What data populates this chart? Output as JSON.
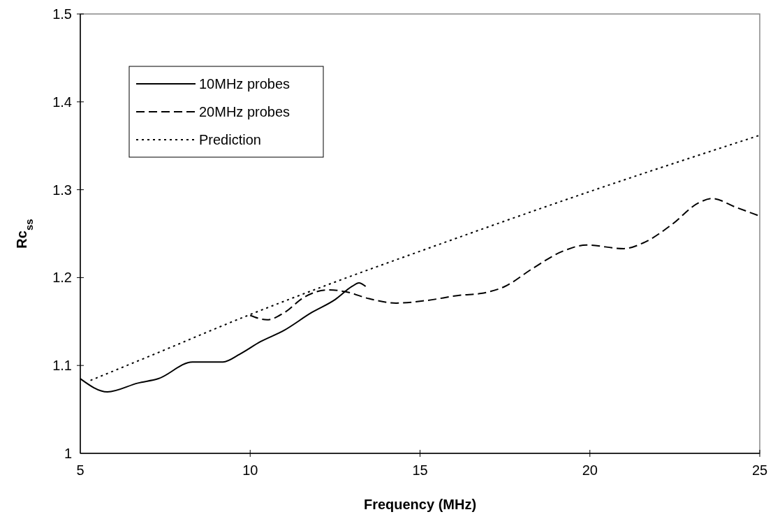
{
  "chart_data": {
    "type": "line",
    "xlabel": "Frequency (MHz)",
    "ylabel": "Rc$_{ss}$",
    "xlim": [
      5,
      25
    ],
    "ylim": [
      1,
      1.5
    ],
    "xticks": [
      5,
      10,
      15,
      20,
      25
    ],
    "yticks": [
      1,
      1.1,
      1.2,
      1.3,
      1.4,
      1.5
    ],
    "grid": false,
    "legend": "top left",
    "marker": "none",
    "series": [
      {
        "name": "10MHz probes",
        "color": "#000000",
        "line_style": "solid",
        "x": [
          5,
          5.8,
          6.7,
          7.3,
          8.3,
          9.2,
          9.7,
          10.3,
          11,
          11.8,
          12.5,
          13,
          13.2,
          13.4
        ],
        "values": [
          1.085,
          1.07,
          1.08,
          1.085,
          1.104,
          1.104,
          1.113,
          1.127,
          1.14,
          1.16,
          1.175,
          1.19,
          1.194,
          1.19
        ]
      },
      {
        "name": "20MHz probes",
        "color": "#000000",
        "line_style": "dashed",
        "x": [
          10,
          10.5,
          11,
          11.6,
          12.3,
          12.8,
          13.5,
          14.3,
          15.2,
          16.2,
          16.8,
          17.5,
          18.3,
          19.2,
          19.9,
          21,
          21.6,
          22.4,
          23.2,
          23.6,
          24.3,
          25
        ],
        "values": [
          1.157,
          1.152,
          1.16,
          1.178,
          1.186,
          1.184,
          1.176,
          1.171,
          1.174,
          1.18,
          1.182,
          1.19,
          1.21,
          1.23,
          1.237,
          1.233,
          1.24,
          1.26,
          1.285,
          1.29,
          1.28,
          1.27
        ]
      },
      {
        "name": "Prediction",
        "color": "#000000",
        "line_style": "dotted",
        "x": [
          5.3,
          7,
          10,
          12.5,
          15,
          20,
          25
        ],
        "values": [
          1.083,
          1.11,
          1.158,
          1.195,
          1.23,
          1.298,
          1.362
        ]
      }
    ]
  }
}
